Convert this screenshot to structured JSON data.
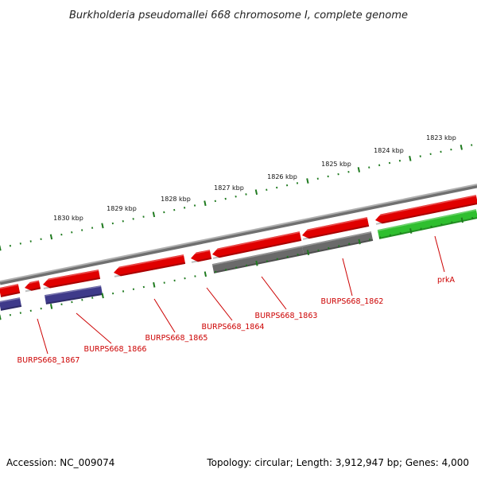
{
  "title": "Burkholderia pseudomallei 668 chromosome I, complete genome",
  "footer": {
    "accession": "Accession: NC_009074",
    "summary": "Topology: circular; Length: 3,912,947 bp; Genes: 4,000"
  },
  "colors": {
    "backbone": "#8a8a8a",
    "tick": "#1f7a1f",
    "label": "#cc0000",
    "leader": "#cc0000"
  },
  "scale_labels": [
    "1830 kbp",
    "1829 kbp",
    "1828 kbp",
    "1827 kbp",
    "1826 kbp",
    "1825 kbp",
    "1824 kbp",
    "1823 kbp"
  ],
  "feature_colors": {
    "red": "#e00000",
    "gray": "#6a6a6a",
    "navy": "#3e3a8a",
    "green": "#2fbf2f"
  },
  "gene_labels": [
    "BURPS668_1867",
    "BURPS668_1866",
    "BURPS668_1865",
    "BURPS668_1864",
    "BURPS668_1863",
    "BURPS668_1862",
    "prkA"
  ]
}
